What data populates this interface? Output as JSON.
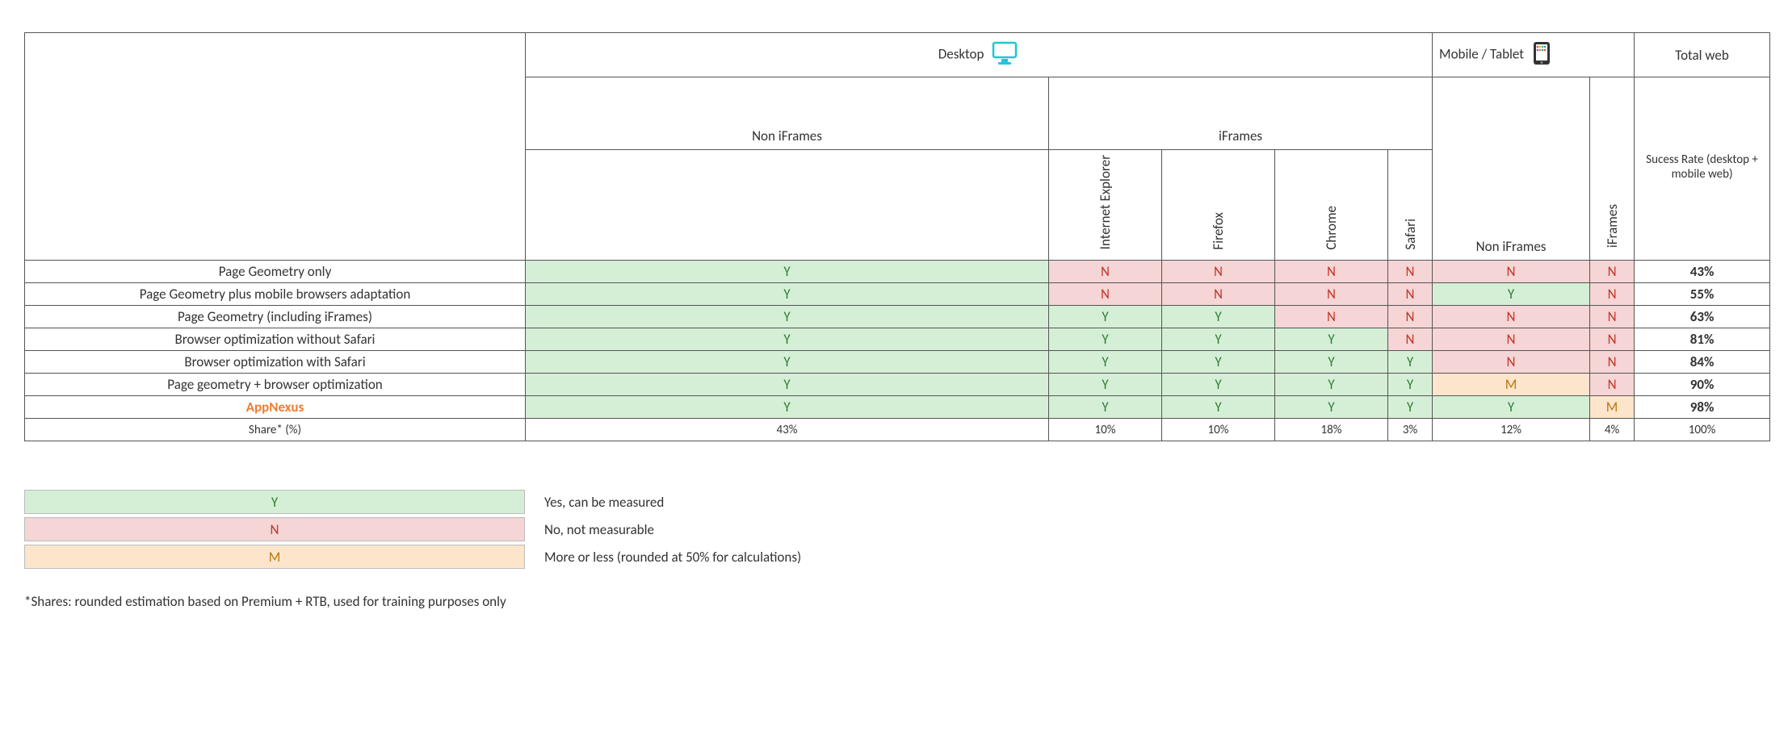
{
  "colors": {
    "yes_bg": "#d5efd7",
    "yes_fg": "#2f7d32",
    "no_bg": "#f5d5d5",
    "no_fg": "#c0392b",
    "maybe_bg": "#fce5cb",
    "maybe_fg": "#b9770e",
    "orange": "#ed7d31",
    "desktop_icon": "#1fc7d4",
    "border": "#555555",
    "text": "#333333"
  },
  "headers": {
    "desktop": "Desktop",
    "mobile": "Mobile / Tablet",
    "total": "Total web",
    "non_iframes": "Non iFrames",
    "iframes": "iFrames",
    "success_rate": "Sucess Rate (desktop + mobile web)",
    "ie": "Internet Explorer",
    "firefox": "Firefox",
    "chrome": "Chrome",
    "safari": "Safari"
  },
  "row_labels": [
    "Page Geometry only",
    "Page Geometry plus mobile browsers adaptation",
    "Page Geometry (including iFrames)",
    "Browser optimization without Safari",
    "Browser optimization with Safari",
    "Page geometry + browser optimization",
    "AppNexus",
    "Share* (%)"
  ],
  "data_rows": [
    {
      "cells": [
        "Y",
        "N",
        "N",
        "N",
        "N",
        "N",
        "N"
      ],
      "total": "43%"
    },
    {
      "cells": [
        "Y",
        "N",
        "N",
        "N",
        "N",
        "Y",
        "N"
      ],
      "total": "55%"
    },
    {
      "cells": [
        "Y",
        "Y",
        "Y",
        "N",
        "N",
        "N",
        "N"
      ],
      "total": "63%"
    },
    {
      "cells": [
        "Y",
        "Y",
        "Y",
        "Y",
        "N",
        "N",
        "N"
      ],
      "total": "81%"
    },
    {
      "cells": [
        "Y",
        "Y",
        "Y",
        "Y",
        "Y",
        "N",
        "N"
      ],
      "total": "84%"
    },
    {
      "cells": [
        "Y",
        "Y",
        "Y",
        "Y",
        "Y",
        "M",
        "N"
      ],
      "total": "90%"
    },
    {
      "cells": [
        "Y",
        "Y",
        "Y",
        "Y",
        "Y",
        "Y",
        "M"
      ],
      "total": "98%"
    }
  ],
  "share_row": [
    "43%",
    "10%",
    "10%",
    "18%",
    "3%",
    "12%",
    "4%",
    "100%"
  ],
  "legend": {
    "y_label": "Y",
    "y_text": "Yes, can be measured",
    "n_label": "N",
    "n_text": "No, not measurable",
    "m_label": "M",
    "m_text": "More or less (rounded at 50% for calculations)"
  },
  "footnote": "*Shares: rounded estimation based on Premium + RTB, used for training purposes only",
  "col_widths": {
    "label": 620,
    "noniframes_desktop": 648,
    "ie": 140,
    "firefox": 140,
    "chrome": 140,
    "safari": 55,
    "noniframes_mobile": 195,
    "iframes_mobile": 55,
    "total": 168
  }
}
